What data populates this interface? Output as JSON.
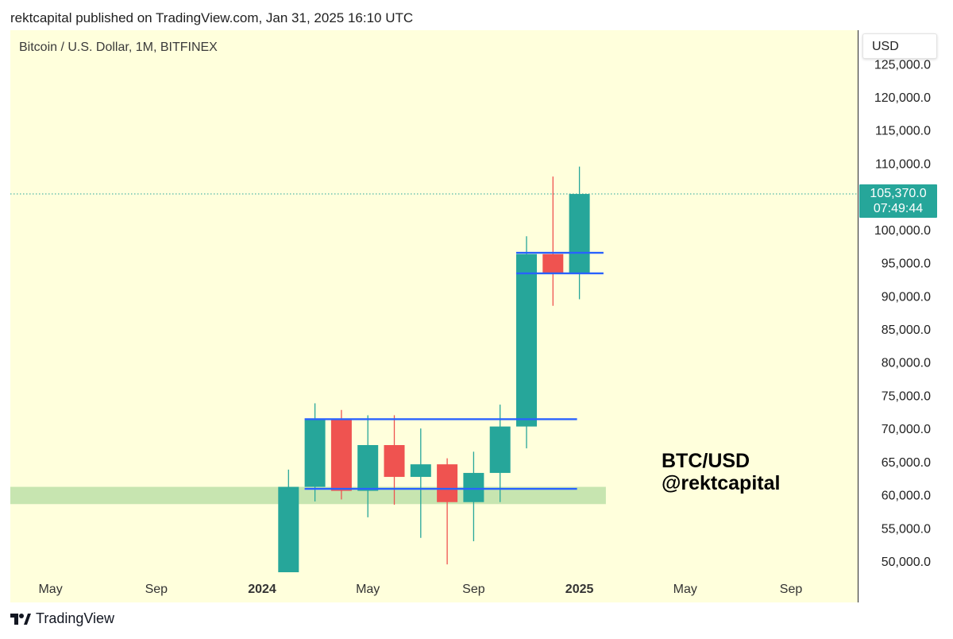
{
  "header": {
    "text": "rektcapital published on TradingView.com, Jan 31, 2025 16:10 UTC"
  },
  "symbol_info": "Bitcoin / U.S. Dollar, 1M, BITFINEX",
  "currency_button": "USD",
  "watermark": {
    "line1": "BTC/USD",
    "line2": "@rektcapital"
  },
  "last_price": {
    "value": "105,370.0",
    "countdown": "07:49:44"
  },
  "footer": {
    "brand": "TradingView",
    "logo_icon": "tradingview-logo-icon"
  },
  "colors": {
    "bullish": "#26a69a",
    "bearish": "#ef5350",
    "level_line": "#2962ff",
    "support_zone": "#c7e5b0",
    "background": "#ffffdc"
  },
  "chart_data": {
    "type": "candlestick",
    "title": "Bitcoin / U.S. Dollar, 1M, BITFINEX",
    "timeframe": "1M",
    "ylim": [
      48500,
      126000
    ],
    "y_ticks": [
      "50,000.0",
      "55,000.0",
      "60,000.0",
      "65,000.0",
      "70,000.0",
      "75,000.0",
      "80,000.0",
      "85,000.0",
      "90,000.0",
      "95,000.0",
      "100,000.0",
      "105,000.0",
      "110,000.0",
      "115,000.0",
      "120,000.0",
      "125,000.0"
    ],
    "y_tick_values": [
      50000,
      55000,
      60000,
      65000,
      70000,
      75000,
      80000,
      85000,
      90000,
      95000,
      100000,
      105000,
      110000,
      115000,
      120000,
      125000
    ],
    "x_ticks": [
      {
        "label": "May",
        "month": "2023-05",
        "bold": false
      },
      {
        "label": "Sep",
        "month": "2023-09",
        "bold": false
      },
      {
        "label": "2024",
        "month": "2024-01",
        "bold": true
      },
      {
        "label": "May",
        "month": "2024-05",
        "bold": false
      },
      {
        "label": "Sep",
        "month": "2024-09",
        "bold": false
      },
      {
        "label": "2025",
        "month": "2025-01",
        "bold": true
      },
      {
        "label": "May",
        "month": "2025-05",
        "bold": false
      },
      {
        "label": "Sep",
        "month": "2025-09",
        "bold": false
      }
    ],
    "candles": [
      {
        "month": "2024-02",
        "open": 42600,
        "high": 63800,
        "low": 42500,
        "close": 61200
      },
      {
        "month": "2024-03",
        "open": 61200,
        "high": 73800,
        "low": 59000,
        "close": 71300
      },
      {
        "month": "2024-04",
        "open": 71300,
        "high": 72800,
        "low": 59300,
        "close": 60600
      },
      {
        "month": "2024-05",
        "open": 60600,
        "high": 72000,
        "low": 56600,
        "close": 67500
      },
      {
        "month": "2024-06",
        "open": 67500,
        "high": 72000,
        "low": 58500,
        "close": 62700
      },
      {
        "month": "2024-07",
        "open": 62700,
        "high": 70000,
        "low": 53500,
        "close": 64600
      },
      {
        "month": "2024-08",
        "open": 64600,
        "high": 65500,
        "low": 49500,
        "close": 58900
      },
      {
        "month": "2024-09",
        "open": 58900,
        "high": 66500,
        "low": 53000,
        "close": 63300
      },
      {
        "month": "2024-10",
        "open": 63300,
        "high": 73600,
        "low": 58900,
        "close": 70300
      },
      {
        "month": "2024-11",
        "open": 70300,
        "high": 99000,
        "low": 67000,
        "close": 96300
      },
      {
        "month": "2024-12",
        "open": 96300,
        "high": 108000,
        "low": 88500,
        "close": 93400
      },
      {
        "month": "2025-01",
        "open": 93400,
        "high": 109500,
        "low": 89500,
        "close": 105370
      }
    ],
    "support_zone": {
      "from": "2023-01",
      "to": "2025-02",
      "low": 58600,
      "high": 61200
    },
    "horizontal_levels": [
      {
        "price": 71400,
        "from": "2024-03",
        "to": "2025-01"
      },
      {
        "price": 60900,
        "from": "2024-03",
        "to": "2025-01"
      },
      {
        "price": 96500,
        "from": "2024-11",
        "to": "2025-02"
      },
      {
        "price": 93400,
        "from": "2024-11",
        "to": "2025-02"
      }
    ],
    "last_price_line": 105370
  }
}
